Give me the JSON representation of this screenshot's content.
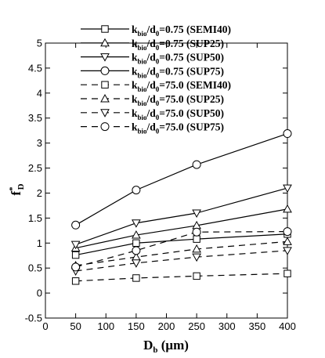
{
  "chart_data": {
    "type": "line",
    "x": [
      50,
      150,
      250,
      400
    ],
    "xlim": [
      0,
      400
    ],
    "ylim": [
      -0.5,
      5
    ],
    "xticks": [
      0,
      50,
      100,
      150,
      200,
      250,
      300,
      350,
      400
    ],
    "yticks": [
      -0.5,
      0,
      0.5,
      1,
      1.5,
      2,
      2.5,
      3,
      3.5,
      4,
      4.5,
      5
    ],
    "xtick_labels": [
      "0",
      "50",
      "100",
      "150",
      "200",
      "250",
      "300",
      "350",
      "400"
    ],
    "ytick_labels": [
      "-0.5",
      "0",
      "0.5",
      "1",
      "1.5",
      "2",
      "2.5",
      "3",
      "3.5",
      "4",
      "4.5",
      "5"
    ],
    "xlabel": {
      "main": "D",
      "sub": "b",
      "rest": " (μm)"
    },
    "ylabel": {
      "main": "f",
      "sup": "*",
      "sub": "D"
    },
    "grid": false,
    "legend_position": "top-right",
    "series": [
      {
        "label_main": "k",
        "label_sub": "bio",
        "label_mid": "/d",
        "label_sub2": "0",
        "label_rest": "=0.75 (SEMI40)",
        "marker": "square",
        "dash": "solid",
        "values": [
          0.76,
          1.0,
          1.08,
          1.18
        ]
      },
      {
        "label_main": "k",
        "label_sub": "bio",
        "label_mid": "/d",
        "label_sub2": "0",
        "label_rest": "=0.75 (SUP25)",
        "marker": "triangle-up",
        "dash": "solid",
        "values": [
          0.9,
          1.16,
          1.35,
          1.68
        ]
      },
      {
        "label_main": "k",
        "label_sub": "bio",
        "label_mid": "/d",
        "label_sub2": "0",
        "label_rest": "=0.75 (SUP50)",
        "marker": "triangle-down",
        "dash": "solid",
        "values": [
          0.97,
          1.4,
          1.6,
          2.1
        ]
      },
      {
        "label_main": "k",
        "label_sub": "bio",
        "label_mid": "/d",
        "label_sub2": "0",
        "label_rest": "=0.75 (SUP75)",
        "marker": "circle",
        "dash": "solid",
        "values": [
          1.36,
          2.06,
          2.57,
          3.19
        ]
      },
      {
        "label_main": "k",
        "label_sub": "bio",
        "label_mid": "/d",
        "label_sub2": "0",
        "label_rest": "=75.0 (SEMI40)",
        "marker": "square",
        "dash": "dashed",
        "values": [
          0.24,
          0.3,
          0.34,
          0.39
        ]
      },
      {
        "label_main": "k",
        "label_sub": "bio",
        "label_mid": "/d",
        "label_sub2": "0",
        "label_rest": "=75.0 (SUP25)",
        "marker": "triangle-up",
        "dash": "dashed",
        "values": [
          0.55,
          0.72,
          0.88,
          1.03
        ]
      },
      {
        "label_main": "k",
        "label_sub": "bio",
        "label_mid": "/d",
        "label_sub2": "0",
        "label_rest": "=75.0 (SUP50)",
        "marker": "triangle-down",
        "dash": "dashed",
        "values": [
          0.44,
          0.6,
          0.72,
          0.85
        ]
      },
      {
        "label_main": "k",
        "label_sub": "bio",
        "label_mid": "/d",
        "label_sub2": "0",
        "label_rest": "=75.0 (SUP75)",
        "marker": "circle",
        "dash": "dashed",
        "values": [
          0.52,
          0.85,
          1.22,
          1.23
        ]
      }
    ]
  }
}
